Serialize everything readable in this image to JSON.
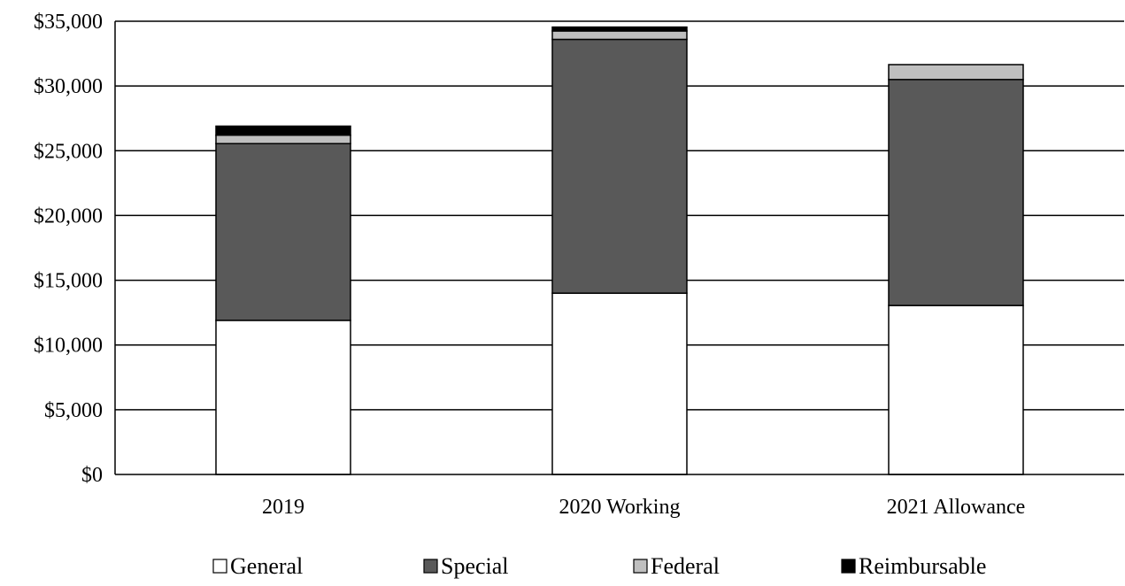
{
  "chart_data": {
    "type": "bar",
    "stacked": true,
    "categories": [
      "2019",
      "2020 Working",
      "2021 Allowance"
    ],
    "series": [
      {
        "name": "General",
        "values": [
          11900,
          14000,
          13050
        ],
        "color": "#ffffff"
      },
      {
        "name": "Special",
        "values": [
          13650,
          19600,
          17450
        ],
        "color": "#595959"
      },
      {
        "name": "Federal",
        "values": [
          650,
          650,
          1150
        ],
        "color": "#bfbfbf"
      },
      {
        "name": "Reimbursable",
        "values": [
          700,
          300,
          0
        ],
        "color": "#000000"
      }
    ],
    "yticks": [
      "$0",
      "$5,000",
      "$10,000",
      "$15,000",
      "$20,000",
      "$25,000",
      "$30,000",
      "$35,000"
    ],
    "ylim": [
      0,
      35000
    ],
    "grid": true,
    "legend_position": "bottom",
    "title": "",
    "xlabel": "",
    "ylabel": ""
  }
}
